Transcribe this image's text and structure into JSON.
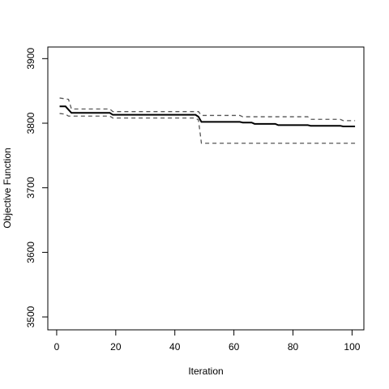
{
  "chart_data": {
    "type": "line",
    "title": "",
    "xlabel": "Iteration",
    "ylabel": "Objective Function",
    "xlim": [
      -3,
      104
    ],
    "ylim": [
      3480,
      3918
    ],
    "x_ticks": [
      0,
      20,
      40,
      60,
      80,
      100
    ],
    "y_ticks": [
      3500,
      3600,
      3700,
      3800,
      3900
    ],
    "grid": false,
    "legend": "none",
    "series": [
      {
        "style": "solid",
        "color": "#000000",
        "points": [
          [
            1,
            3826
          ],
          [
            3,
            3826
          ],
          [
            4,
            3821
          ],
          [
            5,
            3816
          ],
          [
            18,
            3816
          ],
          [
            19,
            3813
          ],
          [
            47,
            3813
          ],
          [
            48,
            3810
          ],
          [
            49,
            3802
          ],
          [
            62,
            3802
          ],
          [
            63,
            3801
          ],
          [
            66,
            3801
          ],
          [
            67,
            3799
          ],
          [
            74,
            3799
          ],
          [
            75,
            3797
          ],
          [
            85,
            3797
          ],
          [
            86,
            3796
          ],
          [
            96,
            3796
          ],
          [
            97,
            3795
          ],
          [
            101,
            3795
          ]
        ]
      },
      {
        "style": "dashed",
        "color": "#555555",
        "points": [
          [
            1,
            3839
          ],
          [
            4,
            3837
          ],
          [
            5,
            3822
          ],
          [
            18,
            3822
          ],
          [
            19,
            3818
          ],
          [
            48,
            3818
          ],
          [
            49,
            3812
          ],
          [
            62,
            3812
          ],
          [
            63,
            3810
          ],
          [
            85,
            3810
          ],
          [
            86,
            3806
          ],
          [
            96,
            3806
          ],
          [
            97,
            3804
          ],
          [
            101,
            3804
          ]
        ]
      },
      {
        "style": "dashed",
        "color": "#555555",
        "points": [
          [
            1,
            3815
          ],
          [
            3,
            3814
          ],
          [
            4,
            3811
          ],
          [
            18,
            3811
          ],
          [
            19,
            3808
          ],
          [
            47,
            3808
          ],
          [
            48,
            3805
          ],
          [
            49,
            3769
          ],
          [
            101,
            3769
          ]
        ]
      }
    ]
  }
}
